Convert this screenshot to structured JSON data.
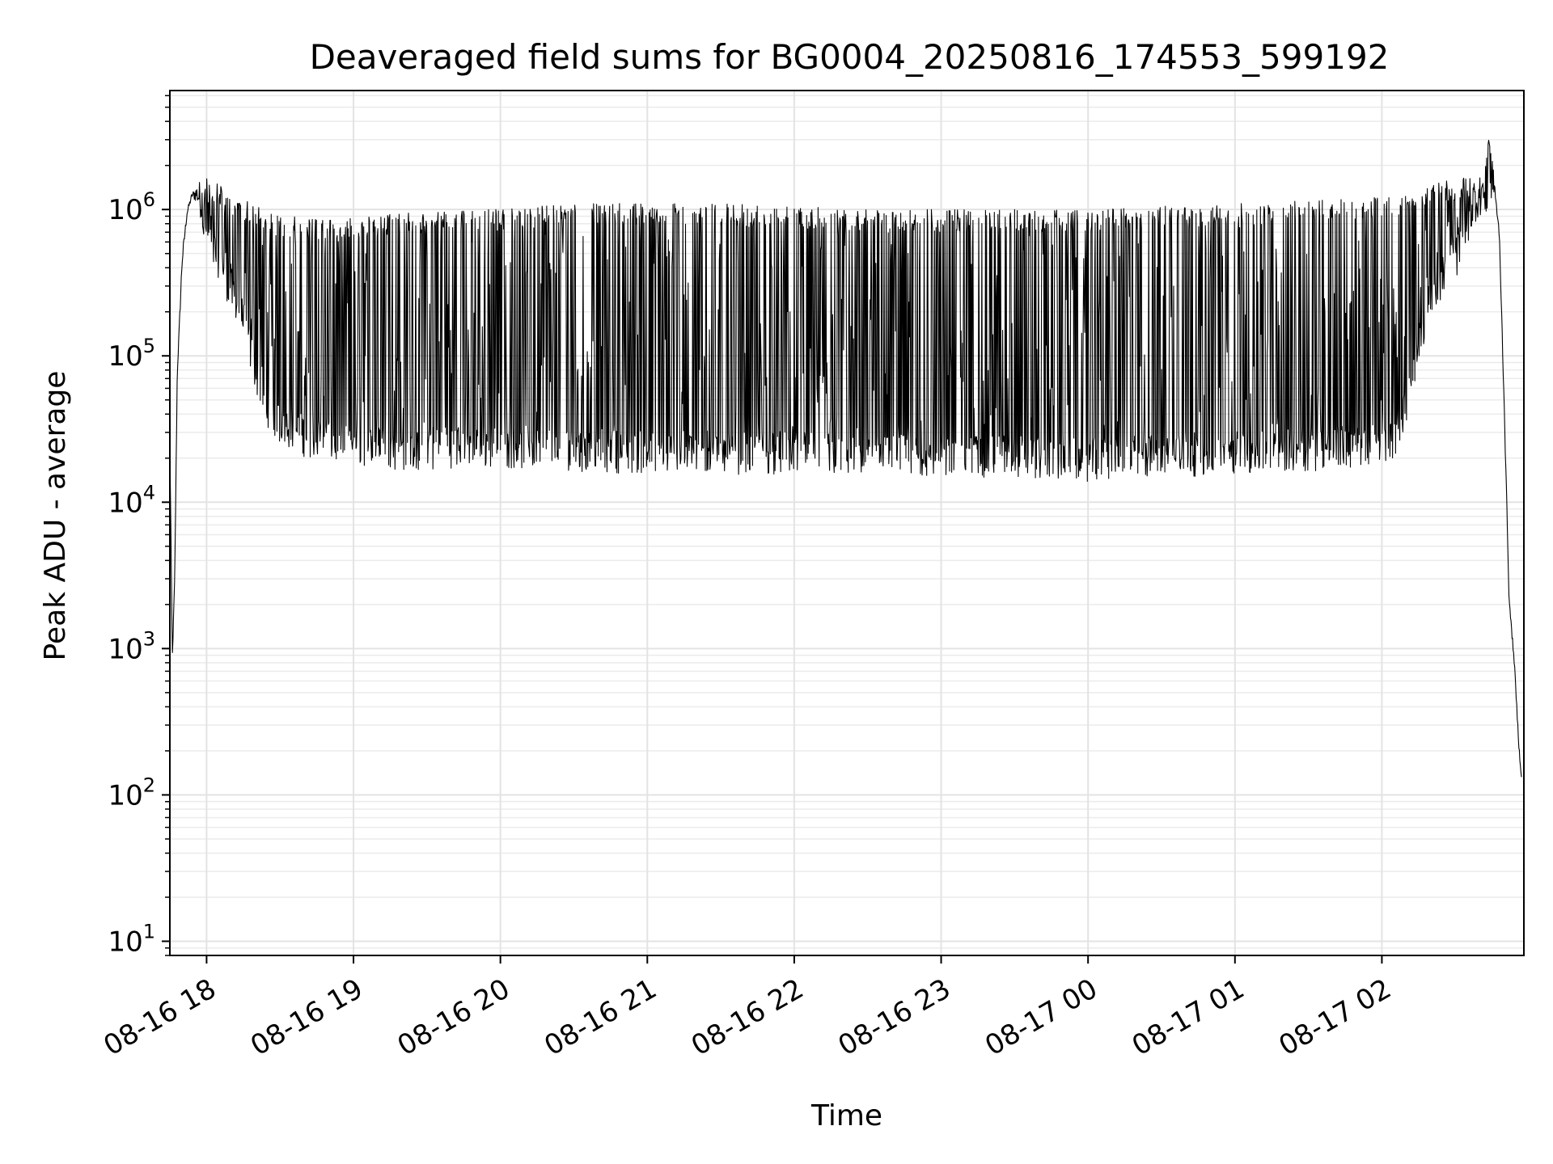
{
  "chart_data": {
    "type": "line",
    "title": "Deaveraged field sums for BG0004_20250816_174553_599192",
    "xlabel": "Time",
    "ylabel": "Peak ADU - average",
    "y_scale": "log",
    "ylim": [
      8,
      6500000
    ],
    "xlim": [
      "2025-08-16 17:45",
      "2025-08-17 02:58"
    ],
    "grid": true,
    "line_color": "#000000",
    "x_ticks": [
      "08-16 18",
      "08-16 19",
      "08-16 20",
      "08-16 21",
      "08-16 22",
      "08-16 23",
      "08-17 00",
      "08-17 01",
      "08-17 02"
    ],
    "x_tick_times": [
      "2025-08-16 18:00",
      "2025-08-16 19:00",
      "2025-08-16 20:00",
      "2025-08-16 21:00",
      "2025-08-16 22:00",
      "2025-08-16 23:00",
      "2025-08-17 00:00",
      "2025-08-17 01:00",
      "2025-08-17 02:00"
    ],
    "y_ticks": [
      10,
      100,
      1000,
      10000,
      100000,
      1000000
    ],
    "y_tick_labels": [
      {
        "base": "10",
        "exp": "1"
      },
      {
        "base": "10",
        "exp": "2"
      },
      {
        "base": "10",
        "exp": "3"
      },
      {
        "base": "10",
        "exp": "4"
      },
      {
        "base": "10",
        "exp": "5"
      },
      {
        "base": "10",
        "exp": "6"
      }
    ],
    "series": [
      {
        "x": [
          "2025-08-16 17:45",
          "2025-08-16 17:46",
          "2025-08-16 17:47",
          "2025-08-16 17:48",
          "2025-08-16 17:50",
          "2025-08-16 17:52",
          "2025-08-16 17:54",
          "2025-08-16 17:56",
          "2025-08-16 18:00",
          "2025-08-16 18:02",
          "2025-08-16 18:03",
          "2025-08-16 18:06",
          "2025-08-16 18:08",
          "2025-08-16 18:10",
          "2025-08-16 18:15",
          "2025-08-16 18:20",
          "2025-08-16 18:25",
          "2025-08-16 18:30",
          "2025-08-16 18:35",
          "2025-08-16 18:40",
          "2025-08-16 18:45",
          "2025-08-16 18:50",
          "2025-08-16 18:55",
          "2025-08-16 19:00",
          "2025-08-16 19:10",
          "2025-08-16 19:20",
          "2025-08-16 19:30",
          "2025-08-16 19:40",
          "2025-08-16 19:50",
          "2025-08-16 20:00",
          "2025-08-16 20:30",
          "2025-08-16 21:00",
          "2025-08-16 21:30",
          "2025-08-16 22:00",
          "2025-08-16 22:30",
          "2025-08-16 23:00",
          "2025-08-16 23:30",
          "2025-08-17 00:00",
          "2025-08-17 00:30",
          "2025-08-17 01:00",
          "2025-08-17 01:30",
          "2025-08-17 01:50",
          "2025-08-17 02:00",
          "2025-08-17 02:05",
          "2025-08-17 02:10",
          "2025-08-17 02:15",
          "2025-08-17 02:20",
          "2025-08-17 02:25",
          "2025-08-17 02:30",
          "2025-08-17 02:35",
          "2025-08-17 02:40",
          "2025-08-17 02:44",
          "2025-08-17 02:46",
          "2025-08-17 02:48",
          "2025-08-17 02:50",
          "2025-08-17 02:52",
          "2025-08-17 02:54",
          "2025-08-17 02:56",
          "2025-08-17 02:57"
        ],
        "floor": [
          25000,
          800,
          3000,
          70000,
          400000,
          900000,
          1200000,
          1100000,
          600000,
          500000,
          450000,
          400000,
          300000,
          250000,
          150000,
          70000,
          40000,
          30000,
          28000,
          25000,
          24000,
          23000,
          22000,
          22000,
          21000,
          20000,
          20000,
          21000,
          21000,
          21000,
          20000,
          19000,
          19000,
          19000,
          18000,
          18000,
          18000,
          17000,
          18000,
          19000,
          20000,
          21000,
          22000,
          25000,
          40000,
          100000,
          250000,
          300000,
          400000,
          700000,
          900000,
          1100000,
          1300000,
          600000,
          40000,
          2000,
          800,
          200,
          130
        ],
        "peak": [
          30000,
          900,
          3200,
          75000,
          500000,
          1000000,
          1300000,
          1500000,
          1800000,
          1600000,
          1500000,
          1500000,
          1400000,
          1300000,
          1200000,
          1100000,
          1000000,
          900000,
          900000,
          900000,
          850000,
          850000,
          850000,
          900000,
          900000,
          950000,
          950000,
          1000000,
          1000000,
          1000000,
          1100000,
          1100000,
          1100000,
          1050000,
          1000000,
          1000000,
          1000000,
          1000000,
          1050000,
          1100000,
          1150000,
          1200000,
          1250000,
          1300000,
          1400000,
          1500000,
          1500000,
          1600000,
          1600000,
          1700000,
          1700000,
          3300000,
          1600000,
          700000,
          50000,
          2200,
          900,
          220,
          140
        ]
      }
    ]
  }
}
